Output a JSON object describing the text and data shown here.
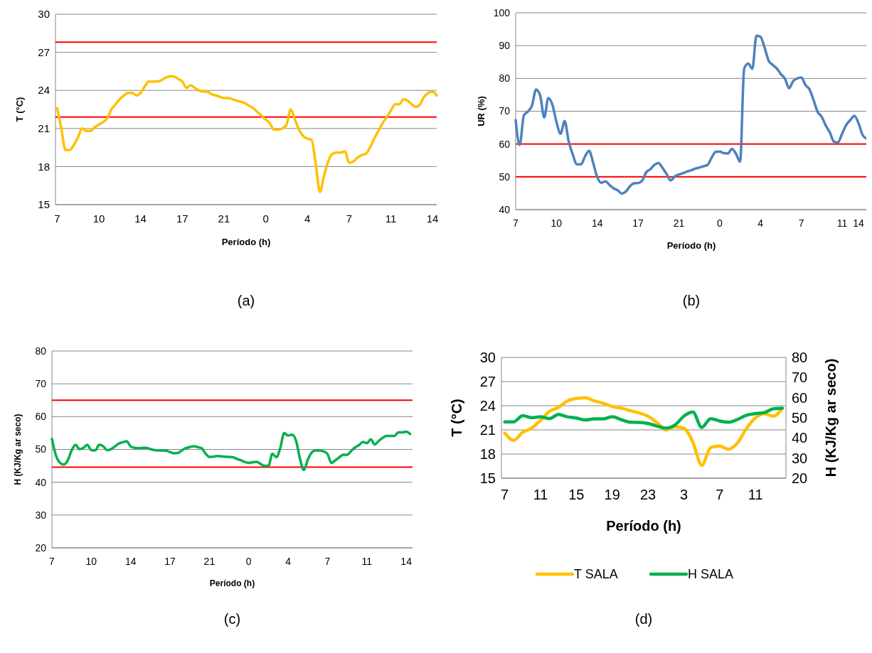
{
  "chart_data": [
    {
      "type": "line",
      "xlabel": "Período (h)",
      "ylabel": "T (°C)",
      "annotations": [
        "(a)"
      ],
      "grid": "y",
      "ylim": [
        15,
        30
      ],
      "yticks": [
        15,
        18,
        21,
        24,
        27,
        30
      ],
      "categories": [
        "7",
        null,
        null,
        null,
        null,
        null,
        null,
        null,
        null,
        null,
        "10",
        null,
        null,
        null,
        null,
        null,
        null,
        null,
        null,
        null,
        "14",
        null,
        null,
        null,
        null,
        null,
        null,
        null,
        null,
        null,
        "17",
        null,
        null,
        null,
        null,
        null,
        null,
        null,
        null,
        null,
        "21",
        null,
        null,
        null,
        null,
        null,
        null,
        null,
        null,
        null,
        "0",
        null,
        null,
        null,
        null,
        null,
        null,
        null,
        null,
        null,
        "4",
        null,
        null,
        null,
        null,
        null,
        null,
        null,
        null,
        null,
        "7",
        null,
        null,
        null,
        null,
        null,
        null,
        null,
        null,
        null,
        "11",
        null,
        null,
        null,
        null,
        null,
        null,
        null,
        null,
        null,
        "14",
        null
      ],
      "series": [
        {
          "color": "#ffc000",
          "values": [
            22.6,
            21.0,
            19.3,
            19.3,
            19.7,
            20.3,
            21.0,
            20.8,
            20.8,
            21.1,
            21.3,
            21.5,
            21.8,
            22.5,
            22.9,
            23.3,
            23.6,
            23.8,
            23.8,
            23.6,
            23.8,
            24.3,
            24.7,
            24.7,
            24.7,
            24.8,
            25.0,
            25.1,
            25.1,
            24.9,
            24.7,
            24.2,
            24.4,
            24.2,
            24.0,
            23.9,
            23.9,
            23.7,
            23.6,
            23.5,
            23.4,
            23.4,
            23.3,
            23.2,
            23.1,
            23.0,
            22.8,
            22.6,
            22.3,
            22.0,
            21.7,
            21.4,
            20.9,
            20.9,
            21.0,
            21.3,
            22.5,
            21.7,
            20.9,
            20.4,
            20.2,
            20.1,
            18.2,
            16.0,
            17.3,
            18.4,
            19.0,
            19.1,
            19.1,
            19.2,
            18.3,
            18.4,
            18.7,
            18.9,
            19.0,
            19.5,
            20.2,
            20.8,
            21.4,
            21.9,
            22.4,
            22.9,
            22.9,
            23.3,
            23.2,
            22.9,
            22.7,
            22.9,
            23.5,
            23.8,
            23.9,
            23.6
          ]
        }
      ],
      "ref_lines": [
        {
          "axis": "y",
          "value": 27.8,
          "color": "#ff0000"
        },
        {
          "axis": "y",
          "value": 21.9,
          "color": "#ff0000"
        }
      ]
    },
    {
      "type": "line",
      "xlabel": "Período (h)",
      "ylabel": "UR (%)",
      "annotations": [
        "(b)"
      ],
      "grid": "y",
      "ylim": [
        40,
        100
      ],
      "yticks": [
        40,
        50,
        60,
        70,
        80,
        90,
        100
      ],
      "categories": [
        "7",
        null,
        null,
        null,
        null,
        null,
        null,
        null,
        null,
        null,
        "10",
        null,
        null,
        null,
        null,
        null,
        null,
        null,
        null,
        null,
        "14",
        null,
        null,
        null,
        null,
        null,
        null,
        null,
        null,
        null,
        "17",
        null,
        null,
        null,
        null,
        null,
        null,
        null,
        null,
        null,
        "21",
        null,
        null,
        null,
        null,
        null,
        null,
        null,
        null,
        null,
        "0",
        null,
        null,
        null,
        null,
        null,
        null,
        null,
        null,
        null,
        "4",
        null,
        null,
        null,
        null,
        null,
        null,
        null,
        null,
        null,
        "7",
        null,
        null,
        null,
        null,
        null,
        null,
        null,
        null,
        null,
        "11",
        null,
        null,
        null,
        "14",
        null,
        null
      ],
      "series": [
        {
          "color": "#4f81bd",
          "values": [
            67.3,
            59.7,
            68.7,
            69.9,
            71.7,
            76.6,
            74.8,
            68.1,
            74.0,
            72.0,
            66.7,
            63.1,
            67.0,
            60.8,
            56.8,
            53.8,
            53.8,
            56.2,
            57.9,
            54.2,
            49.9,
            48.2,
            48.6,
            47.5,
            46.5,
            45.9,
            44.9,
            45.5,
            47.1,
            48.0,
            48.1,
            48.8,
            51.4,
            52.3,
            53.6,
            54.2,
            52.7,
            50.8,
            48.9,
            50.1,
            50.7,
            51.1,
            51.6,
            52.0,
            52.5,
            52.8,
            53.2,
            53.6,
            55.8,
            57.6,
            57.7,
            57.2,
            57.1,
            58.5,
            57.0,
            54.6,
            83.0,
            84.5,
            82.9,
            93.0,
            92.7,
            89.4,
            85.4,
            84.1,
            83.0,
            81.3,
            79.9,
            77.0,
            79.2,
            80.0,
            80.3,
            78.0,
            76.7,
            73.4,
            69.8,
            68.3,
            65.6,
            63.5,
            60.7,
            60.5,
            63.2,
            65.8,
            67.3,
            68.6,
            66.4,
            62.8,
            61.6
          ]
        }
      ],
      "ref_lines": [
        {
          "axis": "y",
          "value": 60,
          "color": "#ff0000"
        },
        {
          "axis": "y",
          "value": 50,
          "color": "#ff0000"
        }
      ]
    },
    {
      "type": "line",
      "xlabel": "Período (h)",
      "ylabel": "H (KJ/Kg ar seco)",
      "annotations": [
        "(c)"
      ],
      "grid": "y",
      "ylim": [
        20,
        80
      ],
      "yticks": [
        20,
        30,
        40,
        50,
        60,
        70,
        80
      ],
      "categories": [
        "7",
        null,
        null,
        null,
        null,
        null,
        null,
        null,
        null,
        null,
        "10",
        null,
        null,
        null,
        null,
        null,
        null,
        null,
        null,
        null,
        "14",
        null,
        null,
        null,
        null,
        null,
        null,
        null,
        null,
        null,
        "17",
        null,
        null,
        null,
        null,
        null,
        null,
        null,
        null,
        null,
        "21",
        null,
        null,
        null,
        null,
        null,
        null,
        null,
        null,
        null,
        "0",
        null,
        null,
        null,
        null,
        null,
        null,
        null,
        null,
        null,
        "4",
        null,
        null,
        null,
        null,
        null,
        null,
        null,
        null,
        null,
        "7",
        null,
        null,
        null,
        null,
        null,
        null,
        null,
        null,
        null,
        "11",
        null,
        null,
        null,
        null,
        null,
        null,
        null,
        null,
        null,
        "14",
        null
      ],
      "series": [
        {
          "color": "#00b050",
          "values": [
            53.2,
            48.2,
            46.0,
            45.4,
            46.6,
            49.7,
            51.4,
            50.1,
            50.5,
            51.4,
            49.8,
            49.7,
            51.4,
            51.0,
            49.8,
            50.1,
            50.9,
            51.8,
            52.2,
            52.5,
            50.9,
            50.5,
            50.4,
            50.5,
            50.5,
            50.1,
            49.8,
            49.7,
            49.7,
            49.6,
            49.2,
            48.8,
            48.9,
            49.7,
            50.4,
            50.7,
            51.0,
            50.7,
            50.4,
            48.8,
            47.7,
            47.8,
            48.0,
            47.9,
            47.8,
            47.7,
            47.6,
            47.1,
            46.7,
            46.2,
            45.9,
            46.1,
            46.2,
            45.6,
            45.0,
            45.0,
            48.7,
            47.6,
            50.4,
            55.0,
            54.2,
            54.5,
            52.7,
            47.2,
            43.7,
            46.9,
            49.1,
            49.7,
            49.7,
            49.4,
            48.6,
            45.9,
            46.7,
            47.6,
            48.4,
            48.4,
            49.5,
            50.6,
            51.3,
            52.3,
            51.9,
            53.1,
            51.5,
            52.6,
            53.5,
            54.1,
            54.1,
            54.1,
            55.2,
            55.2,
            55.4,
            54.7
          ]
        }
      ],
      "ref_lines": [
        {
          "axis": "y",
          "value": 65,
          "color": "#ff0000"
        },
        {
          "axis": "y",
          "value": 44.6,
          "color": "#ff0000"
        }
      ]
    },
    {
      "type": "line",
      "xlabel": "Período (h)",
      "ylabel": "T (°C)",
      "y2label": "H (KJ/Kg ar seco)",
      "annotations": [
        "(d)"
      ],
      "grid": "y",
      "legend": "bottom",
      "ylim": [
        15,
        30
      ],
      "yticks": [
        15,
        18,
        21,
        24,
        27,
        30
      ],
      "y2lim": [
        20,
        80
      ],
      "y2ticks": [
        20,
        30,
        40,
        50,
        60,
        70,
        80
      ],
      "categories": [
        "7",
        null,
        null,
        null,
        "11",
        null,
        null,
        null,
        "15",
        null,
        null,
        null,
        "19",
        null,
        null,
        null,
        "23",
        null,
        null,
        null,
        "3",
        null,
        null,
        null,
        "7",
        null,
        null,
        null,
        "11",
        null,
        null,
        null
      ],
      "series": [
        {
          "name": "T SALA",
          "color": "#ffc000",
          "values": [
            20.6,
            19.7,
            20.7,
            21.2,
            22.2,
            23.3,
            23.8,
            24.6,
            24.9,
            25.0,
            24.6,
            24.3,
            23.9,
            23.7,
            23.4,
            23.1,
            22.7,
            21.9,
            21.0,
            21.4,
            21.2,
            19.5,
            16.6,
            18.8,
            19.0,
            18.6,
            19.4,
            21.2,
            22.5,
            23.0,
            22.7,
            23.7
          ]
        },
        {
          "name": "H SALA",
          "color": "#00b050",
          "axis": "y2",
          "values": [
            48.0,
            48.0,
            51.1,
            50.1,
            50.5,
            49.6,
            51.7,
            50.5,
            49.9,
            48.9,
            49.5,
            49.5,
            50.5,
            49.1,
            47.8,
            47.7,
            47.2,
            45.9,
            44.9,
            46.4,
            50.8,
            52.9,
            45.2,
            49.6,
            48.4,
            47.8,
            49.2,
            51.3,
            52.1,
            52.6,
            54.5,
            54.8
          ]
        }
      ]
    }
  ]
}
